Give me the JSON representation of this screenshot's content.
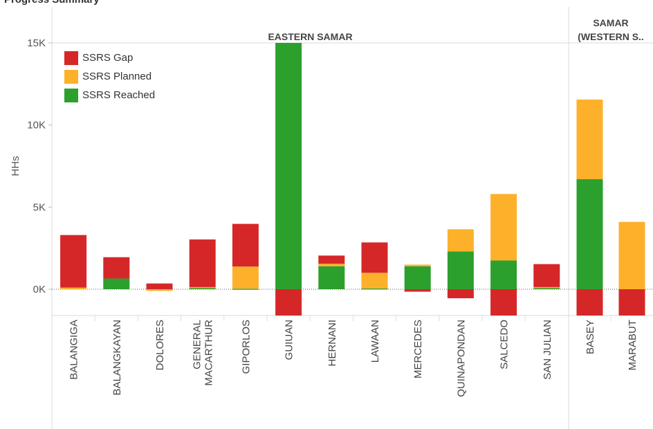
{
  "title": "Progress Summary",
  "chart_data": {
    "type": "bar",
    "stacked": true,
    "ylabel": "HHs",
    "ylim": [
      -1500,
      15000
    ],
    "yticks": [
      0,
      5000,
      10000,
      15000
    ],
    "ytick_labels": [
      "0K",
      "5K",
      "10K",
      "15K"
    ],
    "legend_position": "top-left",
    "zero_line": "dotted",
    "colors": {
      "gap": "#d62728",
      "planned": "#fdb12a",
      "reached": "#2ca02c"
    },
    "panels": [
      {
        "label": "EASTERN SAMAR",
        "categories": [
          "BALANGIGA",
          "BALANGKAYAN",
          "DOLORES",
          "GENERAL MACARTHUR",
          "GIPORLOS",
          "GUIUAN",
          "HERNANI",
          "LAWAAN",
          "MERCEDES",
          "QUINAPONDAN",
          "SALCEDO",
          "SAN JULIAN"
        ]
      },
      {
        "label": "SAMAR (WESTERN S..",
        "categories": [
          "BASEY",
          "MARABUT"
        ]
      }
    ],
    "series": [
      {
        "name": "SSRS Gap",
        "key": "gap",
        "values": [
          3200,
          1300,
          350,
          2900,
          2600,
          -1700,
          500,
          1850,
          -150,
          -550,
          -1700,
          1400,
          -1700,
          -1700
        ]
      },
      {
        "name": "SSRS Planned",
        "key": "planned",
        "values": [
          100,
          0,
          -100,
          50,
          1350,
          0,
          150,
          950,
          100,
          1350,
          4050,
          50,
          4850,
          4100
        ]
      },
      {
        "name": "SSRS Reached",
        "key": "reached",
        "values": [
          0,
          650,
          0,
          80,
          30,
          15000,
          1400,
          50,
          1400,
          2300,
          1750,
          80,
          6700,
          0
        ]
      }
    ]
  }
}
